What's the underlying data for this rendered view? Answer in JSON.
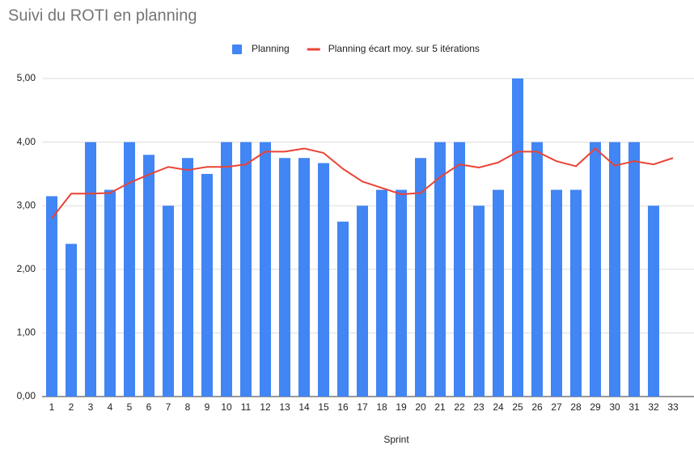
{
  "chart_data": {
    "type": "bar",
    "title": "Suivi du ROTI en planning",
    "x_label": "Sprint",
    "categories": [
      "1",
      "2",
      "3",
      "4",
      "5",
      "6",
      "7",
      "8",
      "9",
      "10",
      "11",
      "12",
      "13",
      "14",
      "15",
      "16",
      "17",
      "18",
      "19",
      "20",
      "21",
      "22",
      "23",
      "24",
      "25",
      "26",
      "27",
      "28",
      "29",
      "30",
      "31",
      "32",
      "33"
    ],
    "series": [
      {
        "name": "Planning",
        "type": "bar",
        "color": "#4285f4",
        "values": [
          3.15,
          2.4,
          4,
          3.25,
          4,
          3.8,
          3,
          3.75,
          3.5,
          4,
          4,
          4,
          3.75,
          3.75,
          3.67,
          2.75,
          3,
          3.25,
          3.25,
          3.75,
          4,
          4,
          3,
          3.25,
          5,
          4,
          3.25,
          3.25,
          4,
          4,
          4,
          3,
          null
        ]
      },
      {
        "name": "Planning écart moy. sur 5 itérations",
        "type": "line",
        "color": "#ea4335",
        "values": [
          2.8,
          3.19,
          3.19,
          3.2,
          3.36,
          3.49,
          3.61,
          3.56,
          3.61,
          3.61,
          3.65,
          3.85,
          3.85,
          3.9,
          3.83,
          3.58,
          3.38,
          3.28,
          3.18,
          3.2,
          3.45,
          3.65,
          3.6,
          3.68,
          3.85,
          3.85,
          3.7,
          3.62,
          3.9,
          3.63,
          3.7,
          3.65,
          3.75
        ]
      }
    ],
    "ylim": [
      0,
      5
    ],
    "yticks": [
      {
        "value": 0,
        "label": "0,00"
      },
      {
        "value": 1,
        "label": "1,00"
      },
      {
        "value": 2,
        "label": "2,00"
      },
      {
        "value": 3,
        "label": "3,00"
      },
      {
        "value": 4,
        "label": "4,00"
      },
      {
        "value": 5,
        "label": "5,00"
      }
    ],
    "grid": true,
    "legend": "top"
  }
}
